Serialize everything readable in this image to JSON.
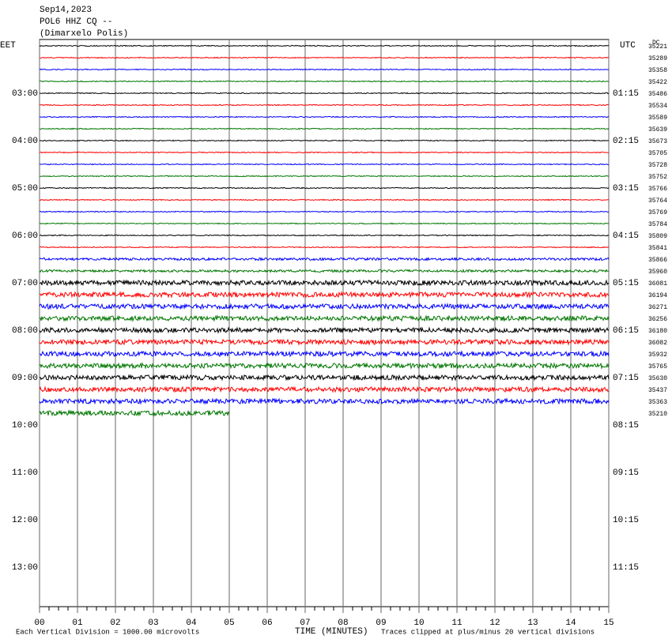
{
  "header": {
    "date": "Sep14,2023",
    "station": "POL6 HHZ CQ --",
    "location": "(Dimarxelo Polis)"
  },
  "left_axis": {
    "title": "EET",
    "labels": [
      "03:00",
      "04:00",
      "05:00",
      "06:00",
      "07:00",
      "08:00",
      "09:00",
      "10:00",
      "11:00",
      "12:00",
      "13:00"
    ]
  },
  "right_axis": {
    "title": "UTC",
    "labels": [
      "01:15",
      "02:15",
      "03:15",
      "04:15",
      "05:15",
      "06:15",
      "07:15",
      "08:15",
      "09:15",
      "10:15",
      "11:15"
    ]
  },
  "dc_title": "DC",
  "traces": {
    "colors": [
      "#000000",
      "#ff0000",
      "#0000ff",
      "#007700"
    ],
    "dc": [
      35221,
      35289,
      35358,
      35422,
      35486,
      35534,
      35589,
      35639,
      35673,
      35705,
      35728,
      35752,
      35766,
      35764,
      35769,
      35784,
      35809,
      35841,
      35866,
      35960,
      36081,
      36194,
      36271,
      36256,
      36180,
      36082,
      35932,
      35765,
      35630,
      35437,
      35363,
      35210
    ]
  },
  "x_axis": {
    "title": "TIME (MINUTES)",
    "ticks": [
      {
        "value": 0,
        "label": "00"
      },
      {
        "value": 1,
        "label": "01"
      },
      {
        "value": 2,
        "label": "02"
      },
      {
        "value": 3,
        "label": "03"
      },
      {
        "value": 4,
        "label": "04"
      },
      {
        "value": 5,
        "label": "05"
      },
      {
        "value": 6,
        "label": "06"
      },
      {
        "value": 7,
        "label": "07"
      },
      {
        "value": 8,
        "label": "08"
      },
      {
        "value": 9,
        "label": "09"
      },
      {
        "value": 10,
        "label": "10"
      },
      {
        "value": 11,
        "label": "11"
      },
      {
        "value": 12,
        "label": "12"
      },
      {
        "value": 13,
        "label": "13"
      },
      {
        "value": 14,
        "label": "14"
      },
      {
        "value": 15,
        "label": "15"
      }
    ],
    "xlim": [
      0,
      15
    ]
  },
  "footer": {
    "scale": "Each Vertical Division = 1000.00 microvolts",
    "clip": "Traces clipped at plus/minus 20 vertical divisions"
  }
}
